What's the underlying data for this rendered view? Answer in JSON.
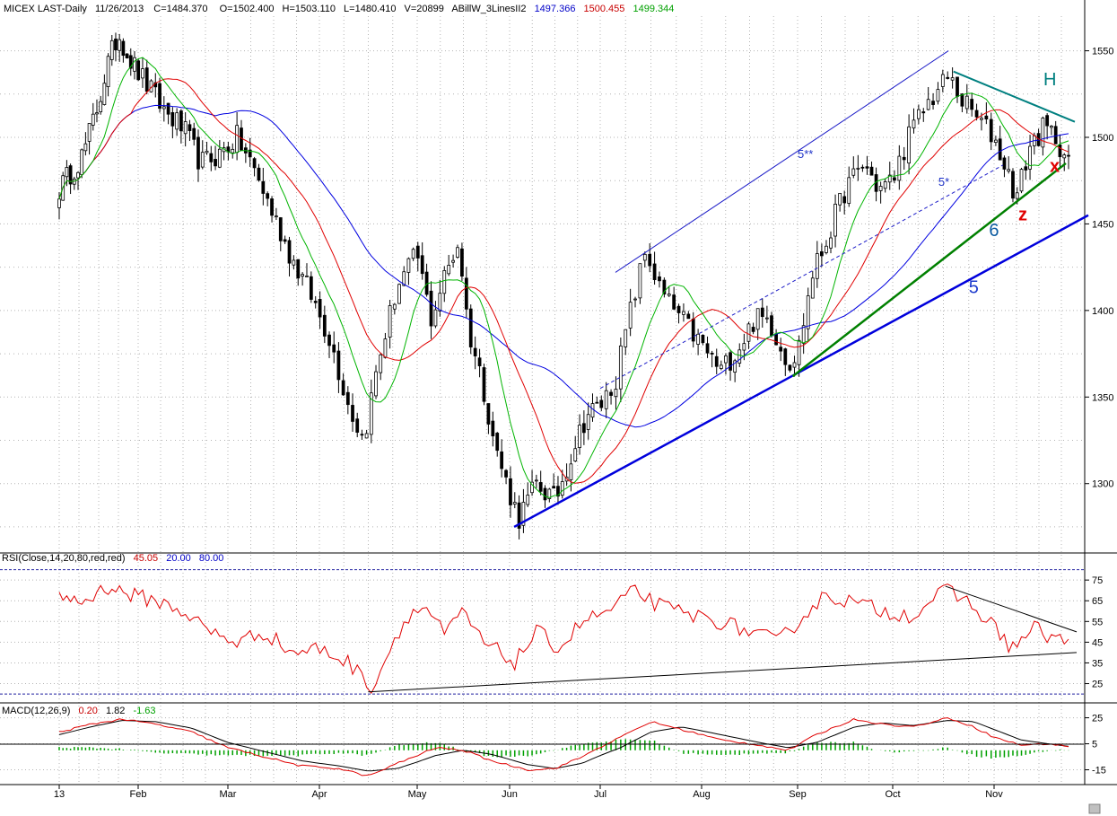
{
  "chart_data": {
    "type": "candlestick",
    "header": {
      "symbol": "MICEX LAST-Daily",
      "date": "11/26/2013",
      "close_label": "C=1484.370",
      "open_label": "O=1502.400",
      "high_label": "H=1503.110",
      "low_label": "L=1480.410",
      "volume_label": "V=20899",
      "indicator_name": "ABillW_3LinesII2",
      "ind_blue": "1497.366",
      "ind_red": "1500.455",
      "ind_green": "1499.344"
    },
    "price_axis": {
      "range": [
        1262,
        1570
      ],
      "ticks": [
        "1300",
        "1350",
        "1400",
        "1450",
        "1500",
        "1550"
      ],
      "tick_values": [
        1300,
        1350,
        1400,
        1450,
        1500,
        1550
      ]
    },
    "x_axis": {
      "labels": [
        "13",
        "Feb",
        "Mar",
        "Apr",
        "May",
        "Jun",
        "Jul",
        "Aug",
        "Sep",
        "Oct",
        "Nov"
      ],
      "months": [
        1,
        2,
        3,
        4,
        5,
        6,
        7,
        8,
        9,
        10,
        11
      ],
      "grid": true
    },
    "price_series": {
      "description": "Daily bars; approximate closes sampled through the year",
      "anchors": [
        [
          1,
          1470
        ],
        [
          1.3,
          1490
        ],
        [
          1.5,
          1520
        ],
        [
          1.6,
          1540
        ],
        [
          1.75,
          1560
        ],
        [
          1.9,
          1545
        ],
        [
          2.1,
          1530
        ],
        [
          2.3,
          1515
        ],
        [
          2.5,
          1505
        ],
        [
          2.7,
          1485
        ],
        [
          2.9,
          1490
        ],
        [
          3.1,
          1500
        ],
        [
          3.3,
          1480
        ],
        [
          3.5,
          1455
        ],
        [
          3.7,
          1430
        ],
        [
          3.9,
          1410
        ],
        [
          4.1,
          1385
        ],
        [
          4.3,
          1345
        ],
        [
          4.45,
          1325
        ],
        [
          4.6,
          1370
        ],
        [
          4.8,
          1415
        ],
        [
          5.0,
          1432
        ],
        [
          5.15,
          1395
        ],
        [
          5.3,
          1420
        ],
        [
          5.45,
          1440
        ],
        [
          5.55,
          1390
        ],
        [
          5.7,
          1360
        ],
        [
          5.85,
          1320
        ],
        [
          6.0,
          1295
        ],
        [
          6.1,
          1280
        ],
        [
          6.3,
          1300
        ],
        [
          6.5,
          1290
        ],
        [
          6.7,
          1320
        ],
        [
          6.85,
          1340
        ],
        [
          7.0,
          1345
        ],
        [
          7.15,
          1360
        ],
        [
          7.3,
          1400
        ],
        [
          7.45,
          1435
        ],
        [
          7.6,
          1410
        ],
        [
          7.8,
          1395
        ],
        [
          8.0,
          1380
        ],
        [
          8.2,
          1365
        ],
        [
          8.4,
          1380
        ],
        [
          8.55,
          1395
        ],
        [
          8.7,
          1395
        ],
        [
          8.9,
          1370
        ],
        [
          9.0,
          1375
        ],
        [
          9.15,
          1420
        ],
        [
          9.3,
          1440
        ],
        [
          9.5,
          1470
        ],
        [
          9.7,
          1485
        ],
        [
          9.85,
          1470
        ],
        [
          10.0,
          1475
        ],
        [
          10.15,
          1500
        ],
        [
          10.35,
          1520
        ],
        [
          10.55,
          1535
        ],
        [
          10.7,
          1520
        ],
        [
          10.85,
          1510
        ],
        [
          11.0,
          1500
        ],
        [
          11.15,
          1480
        ],
        [
          11.25,
          1465
        ],
        [
          11.4,
          1495
        ],
        [
          11.55,
          1505
        ],
        [
          11.7,
          1500
        ],
        [
          11.83,
          1484
        ]
      ],
      "ma_green_period": 10,
      "ma_red_period": 20,
      "ma_blue_period": 40
    },
    "annotations": {
      "labels": [
        {
          "text": "H",
          "color": "#008080",
          "at": [
            11.55,
            1530
          ]
        },
        {
          "text": "x",
          "color": "#e00000",
          "at": [
            11.62,
            1480
          ]
        },
        {
          "text": "z",
          "color": "#e00000",
          "at": [
            11.27,
            1452
          ]
        },
        {
          "text": "6",
          "color": "#0a5aa0",
          "at": [
            10.95,
            1443
          ]
        },
        {
          "text": "5",
          "color": "#1e3ccd",
          "at": [
            10.75,
            1410
          ]
        },
        {
          "text": "5**",
          "color": "#1e32c8",
          "at": [
            9.0,
            1488
          ]
        },
        {
          "text": "5*",
          "color": "#1e32c8",
          "at": [
            10.45,
            1472
          ]
        }
      ],
      "lines": [
        {
          "name": "trendline-5",
          "color": "#0000dc",
          "from": [
            6.05,
            1275
          ],
          "to": [
            12.05,
            1455
          ]
        },
        {
          "name": "trendline-6",
          "color": "#008000",
          "from": [
            8.95,
            1362
          ],
          "to": [
            11.8,
            1485
          ]
        },
        {
          "name": "channel-5**",
          "color": "#1e1ec8",
          "from": [
            7.15,
            1422
          ],
          "to": [
            10.55,
            1550
          ]
        },
        {
          "name": "dashed-5*",
          "color": "#1e1ec8",
          "from": [
            7.0,
            1355
          ],
          "to": [
            11.1,
            1484
          ],
          "dashed": true
        },
        {
          "name": "top-H-line",
          "color": "#008080",
          "from": [
            10.6,
            1538
          ],
          "to": [
            11.9,
            1509
          ]
        }
      ]
    },
    "rsi": {
      "label": "RSI(Close,14,20,80,red,red)",
      "value": "45.05",
      "lower": "20.00",
      "upper": "80.00",
      "range": [
        17,
        82
      ],
      "ticks": [
        "75",
        "65",
        "55",
        "45",
        "35",
        "25"
      ],
      "tick_values": [
        75,
        65,
        55,
        45,
        35,
        25
      ],
      "anchors": [
        [
          1,
          68
        ],
        [
          1.3,
          64
        ],
        [
          1.6,
          72
        ],
        [
          1.9,
          68
        ],
        [
          2.2,
          65
        ],
        [
          2.5,
          60
        ],
        [
          2.8,
          50
        ],
        [
          3.1,
          45
        ],
        [
          3.4,
          50
        ],
        [
          3.7,
          40
        ],
        [
          4.0,
          42
        ],
        [
          4.3,
          35
        ],
        [
          4.55,
          23
        ],
        [
          4.7,
          40
        ],
        [
          4.9,
          58
        ],
        [
          5.1,
          62
        ],
        [
          5.3,
          48
        ],
        [
          5.5,
          60
        ],
        [
          5.7,
          45
        ],
        [
          5.9,
          40
        ],
        [
          6.05,
          35
        ],
        [
          6.3,
          50
        ],
        [
          6.55,
          42
        ],
        [
          6.8,
          55
        ],
        [
          7.1,
          60
        ],
        [
          7.35,
          70
        ],
        [
          7.6,
          62
        ],
        [
          7.9,
          58
        ],
        [
          8.2,
          55
        ],
        [
          8.5,
          50
        ],
        [
          8.8,
          45
        ],
        [
          9.0,
          55
        ],
        [
          9.3,
          68
        ],
        [
          9.6,
          64
        ],
        [
          9.9,
          60
        ],
        [
          10.2,
          58
        ],
        [
          10.5,
          70
        ],
        [
          10.7,
          66
        ],
        [
          10.95,
          55
        ],
        [
          11.2,
          42
        ],
        [
          11.45,
          52
        ],
        [
          11.6,
          48
        ],
        [
          11.83,
          45
        ]
      ],
      "lines": [
        {
          "from": [
            10.52,
            72
          ],
          "to": [
            11.92,
            50
          ]
        },
        {
          "from": [
            4.5,
            21
          ],
          "to": [
            11.92,
            40
          ]
        }
      ]
    },
    "macd": {
      "label": "MACD(12,26,9)",
      "value1": "0.20",
      "value2": "1.82",
      "value3": "-1.63",
      "range": [
        -25,
        33
      ],
      "ticks": [
        "25",
        "5",
        "-15"
      ],
      "tick_values": [
        25,
        5,
        -15
      ],
      "macd_anchors": [
        [
          1,
          14
        ],
        [
          1.4,
          20
        ],
        [
          1.8,
          24
        ],
        [
          2.2,
          20
        ],
        [
          2.6,
          14
        ],
        [
          3.0,
          2
        ],
        [
          3.4,
          -5
        ],
        [
          3.8,
          -12
        ],
        [
          4.2,
          -14
        ],
        [
          4.5,
          -20
        ],
        [
          4.8,
          -10
        ],
        [
          5.2,
          2
        ],
        [
          5.5,
          0
        ],
        [
          5.8,
          -8
        ],
        [
          6.2,
          -15
        ],
        [
          6.5,
          -14
        ],
        [
          6.8,
          -5
        ],
        [
          7.2,
          10
        ],
        [
          7.5,
          22
        ],
        [
          7.8,
          16
        ],
        [
          8.2,
          8
        ],
        [
          8.6,
          4
        ],
        [
          8.9,
          0
        ],
        [
          9.2,
          12
        ],
        [
          9.6,
          24
        ],
        [
          9.9,
          20
        ],
        [
          10.2,
          18
        ],
        [
          10.55,
          25
        ],
        [
          10.8,
          18
        ],
        [
          11.0,
          10
        ],
        [
          11.3,
          4
        ],
        [
          11.6,
          5
        ],
        [
          11.83,
          3
        ]
      ],
      "signal_anchors": [
        [
          1,
          12
        ],
        [
          1.4,
          18
        ],
        [
          1.8,
          23
        ],
        [
          2.2,
          22
        ],
        [
          2.6,
          17
        ],
        [
          3.0,
          6
        ],
        [
          3.4,
          -1
        ],
        [
          3.8,
          -8
        ],
        [
          4.2,
          -12
        ],
        [
          4.5,
          -16
        ],
        [
          4.8,
          -14
        ],
        [
          5.2,
          -4
        ],
        [
          5.5,
          0
        ],
        [
          5.8,
          -3
        ],
        [
          6.2,
          -11
        ],
        [
          6.5,
          -14
        ],
        [
          6.8,
          -10
        ],
        [
          7.2,
          2
        ],
        [
          7.5,
          14
        ],
        [
          7.8,
          18
        ],
        [
          8.2,
          12
        ],
        [
          8.6,
          6
        ],
        [
          8.9,
          2
        ],
        [
          9.2,
          6
        ],
        [
          9.6,
          18
        ],
        [
          9.9,
          21
        ],
        [
          10.2,
          19
        ],
        [
          10.55,
          23
        ],
        [
          10.8,
          22
        ],
        [
          11.0,
          16
        ],
        [
          11.3,
          8
        ],
        [
          11.6,
          5
        ],
        [
          11.83,
          3
        ]
      ]
    },
    "colors": {
      "candle": "#000000",
      "ma_green": "#00b400",
      "ma_red": "#e00000",
      "ma_blue": "#0000e0",
      "rsi_line": "#e00000",
      "dotted_line": "#3c3cc8",
      "grid": "#b4b4b4"
    }
  }
}
